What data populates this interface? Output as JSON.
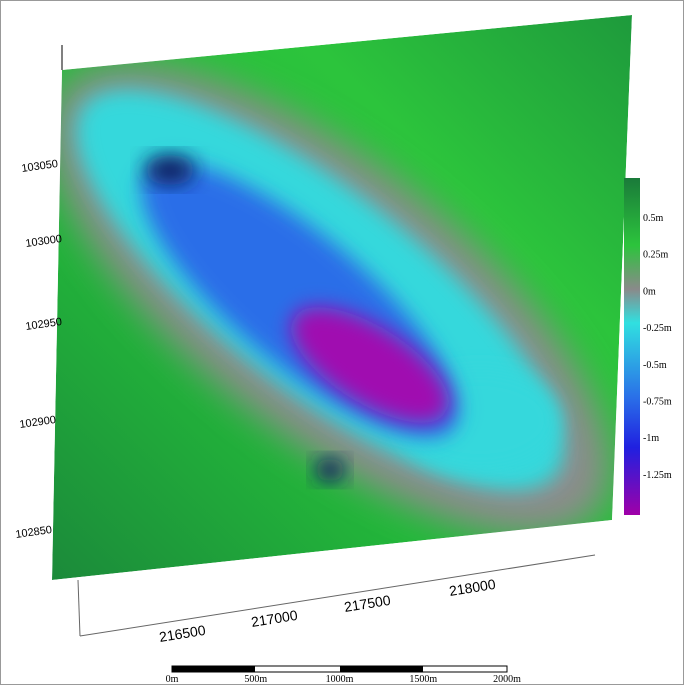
{
  "y_axis_labels": [
    "103050",
    "103000",
    "102950",
    "102900",
    "102850"
  ],
  "x_axis_labels": [
    "216500",
    "217000",
    "217500",
    "218000"
  ],
  "colorbar_labels": [
    "0.5m",
    "0.25m",
    "0m",
    "-0.25m",
    "-0.5m",
    "-0.75m",
    "-1m",
    "-1.25m"
  ],
  "scale_bar_labels": [
    "0m",
    "500m",
    "1000m",
    "1500m",
    "2000m"
  ]
}
